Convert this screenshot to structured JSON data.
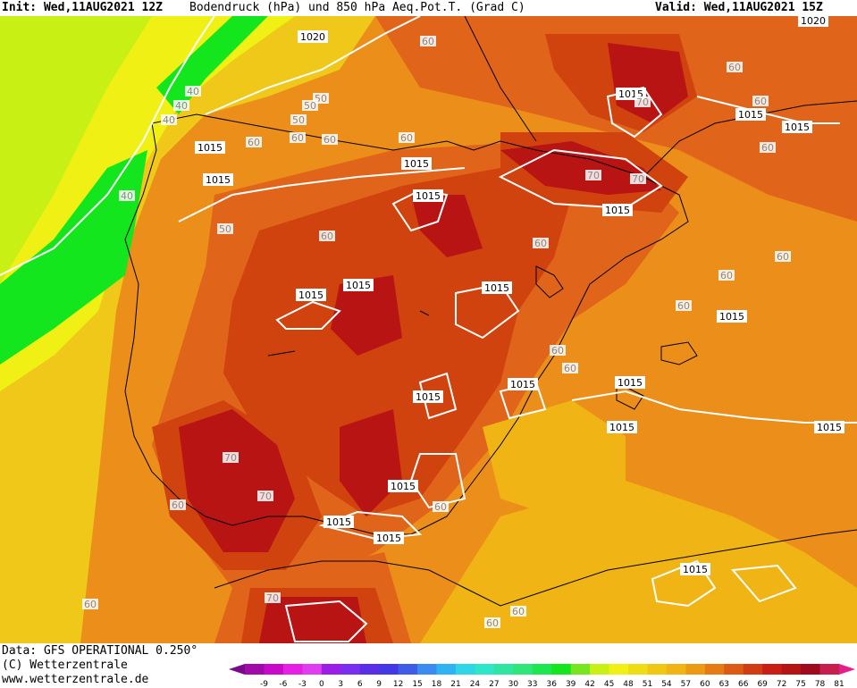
{
  "header": {
    "init": "Init: Wed,11AUG2021 12Z",
    "title": "Bodendruck (hPa) und 850 hPa Aeq.Pot.T. (Grad C)",
    "valid": "Valid: Wed,11AUG2021 15Z"
  },
  "footer": {
    "data_source": "Data: GFS OPERATIONAL 0.250°",
    "copyright": "(C) Wetterzentrale",
    "website": "www.wetterzentrale.de"
  },
  "legend": {
    "ticks": [
      "-9",
      "-6",
      "-3",
      "0",
      "3",
      "6",
      "9",
      "12",
      "15",
      "18",
      "21",
      "24",
      "27",
      "30",
      "33",
      "36",
      "39",
      "42",
      "45",
      "48",
      "51",
      "54",
      "57",
      "60",
      "63",
      "66",
      "69",
      "72",
      "75",
      "78",
      "81"
    ],
    "colors": [
      "#7a0a8a",
      "#a00aa8",
      "#c80ac8",
      "#e61ee6",
      "#e03cf0",
      "#9a1ee6",
      "#7a2ef0",
      "#5a2ee6",
      "#4438e6",
      "#3e5ce6",
      "#3a8cf0",
      "#2eb4f0",
      "#2ed6e6",
      "#2ee6c8",
      "#2ee6a0",
      "#2ee67a",
      "#1ee650",
      "#14e61e",
      "#78e61e",
      "#c8f014",
      "#f0f014",
      "#f0dc14",
      "#f0c814",
      "#f0b414",
      "#ec9a14",
      "#e67a14",
      "#dc5a14",
      "#d23c14",
      "#c81e14",
      "#b41414",
      "#a00a1e",
      "#c81e4e",
      "#e61e8c"
    ]
  },
  "map_colors": {
    "very_warm": "#b81414",
    "warm": "#d0420e",
    "mid_warm": "#e0641a",
    "mid": "#ec8e1a",
    "cool": "#f0c81a",
    "cooler": "#f0f014",
    "cold": "#14e61e",
    "coldest": "#c8f014",
    "isobar": "#ffffff",
    "coast": "#000000"
  },
  "isobar_labels": [
    {
      "text": "1020"
    },
    {
      "text": "1020"
    },
    {
      "text": "1015"
    },
    {
      "text": "1015"
    },
    {
      "text": "1015"
    },
    {
      "text": "1015"
    },
    {
      "text": "1015"
    },
    {
      "text": "1015"
    },
    {
      "text": "1015"
    },
    {
      "text": "1015"
    },
    {
      "text": "1015"
    },
    {
      "text": "1015"
    },
    {
      "text": "1015"
    },
    {
      "text": "1015"
    },
    {
      "text": "1015"
    },
    {
      "text": "1015"
    },
    {
      "text": "1015"
    },
    {
      "text": "1015"
    },
    {
      "text": "1015"
    },
    {
      "text": "1015"
    },
    {
      "text": "1015"
    },
    {
      "text": "1015"
    },
    {
      "text": "1015"
    }
  ],
  "theta_labels": [
    {
      "text": "60"
    },
    {
      "text": "40"
    },
    {
      "text": "40"
    },
    {
      "text": "40"
    },
    {
      "text": "40"
    },
    {
      "text": "50"
    },
    {
      "text": "50"
    },
    {
      "text": "50"
    },
    {
      "text": "60"
    },
    {
      "text": "60"
    },
    {
      "text": "60"
    },
    {
      "text": "60"
    },
    {
      "text": "70"
    },
    {
      "text": "70"
    },
    {
      "text": "70"
    },
    {
      "text": "60"
    },
    {
      "text": "60"
    },
    {
      "text": "60"
    },
    {
      "text": "60"
    },
    {
      "text": "50"
    },
    {
      "text": "60"
    },
    {
      "text": "60"
    },
    {
      "text": "60"
    },
    {
      "text": "60"
    },
    {
      "text": "60"
    },
    {
      "text": "60"
    },
    {
      "text": "70"
    },
    {
      "text": "70"
    },
    {
      "text": "60"
    },
    {
      "text": "60"
    },
    {
      "text": "60"
    },
    {
      "text": "60"
    },
    {
      "text": "60"
    },
    {
      "text": "70"
    }
  ]
}
